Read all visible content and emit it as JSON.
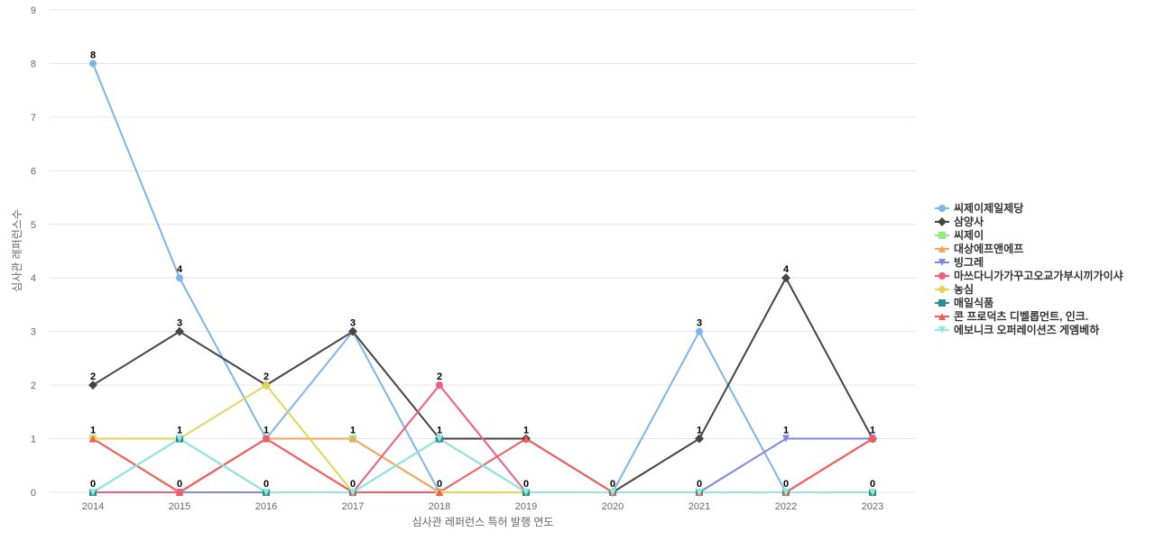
{
  "chart_data": {
    "type": "line",
    "title": "",
    "xlabel": "심사관 레퍼런스 특허 발행 연도",
    "ylabel": "심사관 레퍼런스수",
    "categories": [
      "2014",
      "2015",
      "2016",
      "2017",
      "2018",
      "2019",
      "2020",
      "2021",
      "2022",
      "2023"
    ],
    "ylim": [
      0,
      9
    ],
    "yticks": [
      0,
      1,
      2,
      3,
      4,
      5,
      6,
      7,
      8,
      9
    ],
    "grid": true,
    "legend_position": "right",
    "series": [
      {
        "name": "씨제이제일제당",
        "color": "#7cb5ec",
        "marker": "circle",
        "values": [
          8,
          4,
          1,
          3,
          0,
          0,
          0,
          3,
          0,
          1
        ]
      },
      {
        "name": "삼양사",
        "color": "#434348",
        "marker": "diamond",
        "values": [
          2,
          3,
          2,
          3,
          1,
          1,
          0,
          1,
          4,
          1
        ]
      },
      {
        "name": "씨제이",
        "color": "#90ed7d",
        "marker": "square",
        "values": [
          1,
          0,
          1,
          1,
          0,
          0,
          0,
          0,
          0,
          0
        ]
      },
      {
        "name": "대상에프앤에프",
        "color": "#f7a35c",
        "marker": "triangle",
        "values": [
          1,
          0,
          1,
          1,
          0,
          0,
          0,
          0,
          0,
          0
        ]
      },
      {
        "name": "빙그레",
        "color": "#8085e9",
        "marker": "triangle-down",
        "values": [
          0,
          0,
          0,
          0,
          0,
          0,
          0,
          0,
          1,
          1
        ]
      },
      {
        "name": "마쓰다니가가꾸고오교가부시끼가이샤",
        "color": "#f15c80",
        "marker": "circle",
        "values": [
          0,
          0,
          1,
          0,
          2,
          0,
          0,
          0,
          0,
          1
        ]
      },
      {
        "name": "농심",
        "color": "#e4d354",
        "marker": "diamond",
        "values": [
          1,
          1,
          2,
          0,
          0,
          0,
          0,
          0,
          0,
          0
        ]
      },
      {
        "name": "매일식품",
        "color": "#2b908f",
        "marker": "square",
        "values": [
          0,
          1,
          0,
          0,
          1,
          0,
          0,
          0,
          0,
          0
        ]
      },
      {
        "name": "콘 프로덕츠 디벨롭먼트, 인크.",
        "color": "#f45b5b",
        "marker": "triangle",
        "values": [
          1,
          0,
          1,
          0,
          0,
          1,
          0,
          0,
          0,
          1
        ]
      },
      {
        "name": "에보니크 오퍼레이션즈 게엠베하",
        "color": "#91e8e1",
        "marker": "triangle-down",
        "values": [
          0,
          1,
          0,
          0,
          1,
          0,
          0,
          0,
          0,
          0
        ]
      }
    ],
    "data_labels": [
      {
        "x": "2014",
        "value": 8
      },
      {
        "x": "2014",
        "value": 2
      },
      {
        "x": "2014",
        "value": 1
      },
      {
        "x": "2014",
        "value": 0
      },
      {
        "x": "2015",
        "value": 4
      },
      {
        "x": "2015",
        "value": 3
      },
      {
        "x": "2015",
        "value": 1
      },
      {
        "x": "2015",
        "value": 0
      },
      {
        "x": "2016",
        "value": 2
      },
      {
        "x": "2016",
        "value": 1
      },
      {
        "x": "2016",
        "value": 0
      },
      {
        "x": "2017",
        "value": 3
      },
      {
        "x": "2017",
        "value": 1
      },
      {
        "x": "2017",
        "value": 0
      },
      {
        "x": "2018",
        "value": 2
      },
      {
        "x": "2018",
        "value": 1
      },
      {
        "x": "2018",
        "value": 0
      },
      {
        "x": "2019",
        "value": 1
      },
      {
        "x": "2019",
        "value": 0
      },
      {
        "x": "2020",
        "value": 0
      },
      {
        "x": "2021",
        "value": 3
      },
      {
        "x": "2021",
        "value": 1
      },
      {
        "x": "2021",
        "value": 0
      },
      {
        "x": "2022",
        "value": 4
      },
      {
        "x": "2022",
        "value": 1
      },
      {
        "x": "2022",
        "value": 0
      },
      {
        "x": "2023",
        "value": 1
      },
      {
        "x": "2023",
        "value": 0
      }
    ]
  }
}
